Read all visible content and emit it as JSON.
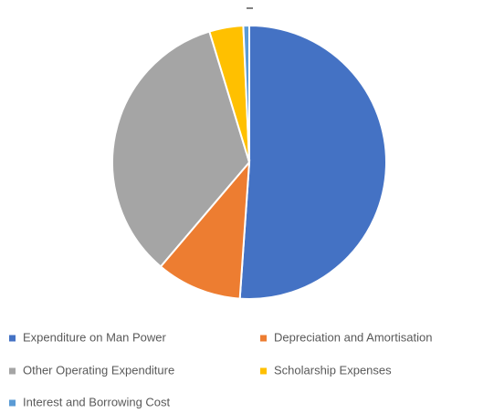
{
  "chart_data": {
    "type": "pie",
    "categories": [
      "Expenditure on Man Power",
      "Depreciation and Amortisation",
      "Other Operating Expenditure",
      "Scholarship Expenses",
      "Interest and Borrowing Cost"
    ],
    "values": [
      51.1,
      10.1,
      34.1,
      4.0,
      0.7
    ],
    "colors": [
      "#4472c4",
      "#ed7d31",
      "#a5a5a5",
      "#ffc000",
      "#5b9bd5"
    ],
    "legend": "bottom"
  }
}
